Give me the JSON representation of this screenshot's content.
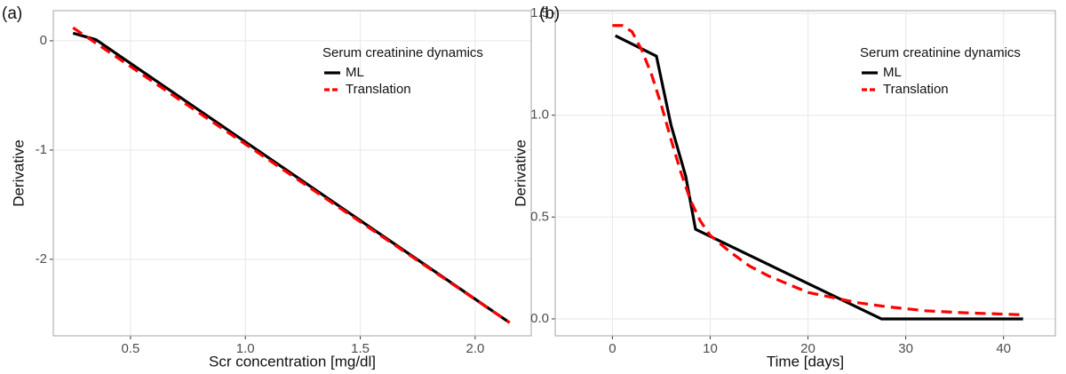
{
  "chart_data": [
    {
      "type": "line",
      "label": "(a)",
      "x_label": "Scr concentration [mg/dl]",
      "y_label": "Derivative",
      "legend_title": "Serum creatinine dynamics",
      "grid": true,
      "xlim": [
        0.164,
        2.244
      ],
      "ylim": [
        -2.7,
        0.276
      ],
      "xticks": [
        0.5,
        {
          "value": 1,
          "label": "1.0"
        },
        1.5,
        {
          "value": 2,
          "label": "2.0"
        }
      ],
      "yticks": [
        -2,
        -1,
        0
      ],
      "series": [
        {
          "name": "ML",
          "color": "#000000",
          "dash": false,
          "x": [
            0.25,
            0.35,
            2.15
          ],
          "values": [
            0.07,
            0.01,
            -2.58
          ]
        },
        {
          "name": "Translation",
          "color": "#ff0000",
          "dash": true,
          "x": [
            0.25,
            2.15
          ],
          "values": [
            0.12,
            -2.58
          ]
        }
      ]
    },
    {
      "type": "line",
      "label": "(b)",
      "x_label": "Time [days]",
      "y_label": "Derivative",
      "legend_title": "Serum creatinine dynamics",
      "grid": true,
      "xlim": [
        -5.85,
        45.3
      ],
      "ylim": [
        -0.083,
        1.513
      ],
      "xticks": [
        0,
        10,
        20,
        30,
        40
      ],
      "yticks": [
        {
          "value": 0,
          "label": "0.0"
        },
        0.5,
        {
          "value": 1,
          "label": "1.0"
        },
        1.5
      ],
      "series": [
        {
          "name": "ML",
          "color": "#000000",
          "dash": false,
          "x": [
            0.3,
            4.5,
            6,
            7.5,
            8.5,
            27.5,
            42
          ],
          "values": [
            1.39,
            1.29,
            0.95,
            0.7,
            0.44,
            0,
            0
          ]
        },
        {
          "name": "Translation",
          "color": "#ff0000",
          "dash": true,
          "x": [
            0,
            1,
            2,
            3,
            4,
            5,
            6,
            7,
            8,
            9,
            10,
            12,
            14,
            16,
            18,
            20,
            22,
            25,
            28,
            32,
            36,
            42
          ],
          "values": [
            1.44,
            1.44,
            1.41,
            1.32,
            1.2,
            1.05,
            0.88,
            0.72,
            0.58,
            0.48,
            0.41,
            0.33,
            0.26,
            0.21,
            0.17,
            0.13,
            0.11,
            0.08,
            0.06,
            0.04,
            0.03,
            0.02
          ]
        }
      ]
    }
  ]
}
